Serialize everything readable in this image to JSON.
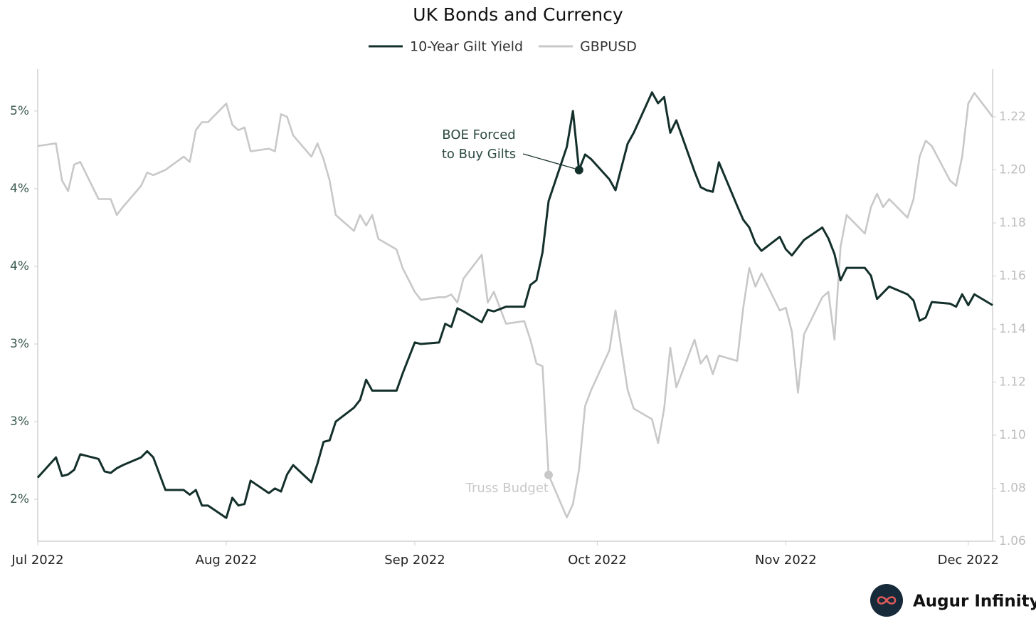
{
  "chart_data": {
    "type": "line",
    "title": "UK Bonds and Currency",
    "legend_position": "top",
    "grid": false,
    "x": [
      "2022-07-01",
      "2022-07-04",
      "2022-07-05",
      "2022-07-06",
      "2022-07-07",
      "2022-07-08",
      "2022-07-11",
      "2022-07-12",
      "2022-07-13",
      "2022-07-14",
      "2022-07-15",
      "2022-07-18",
      "2022-07-19",
      "2022-07-20",
      "2022-07-22",
      "2022-07-25",
      "2022-07-26",
      "2022-07-27",
      "2022-07-28",
      "2022-07-29",
      "2022-08-01",
      "2022-08-02",
      "2022-08-03",
      "2022-08-04",
      "2022-08-05",
      "2022-08-08",
      "2022-08-09",
      "2022-08-10",
      "2022-08-11",
      "2022-08-12",
      "2022-08-15",
      "2022-08-16",
      "2022-08-17",
      "2022-08-18",
      "2022-08-19",
      "2022-08-22",
      "2022-08-23",
      "2022-08-24",
      "2022-08-25",
      "2022-08-26",
      "2022-08-29",
      "2022-08-30",
      "2022-09-01",
      "2022-09-02",
      "2022-09-05",
      "2022-09-06",
      "2022-09-07",
      "2022-09-08",
      "2022-09-09",
      "2022-09-12",
      "2022-09-13",
      "2022-09-14",
      "2022-09-16",
      "2022-09-19",
      "2022-09-20",
      "2022-09-21",
      "2022-09-22",
      "2022-09-23",
      "2022-09-26",
      "2022-09-27",
      "2022-09-28",
      "2022-09-29",
      "2022-09-30",
      "2022-10-03",
      "2022-10-04",
      "2022-10-06",
      "2022-10-07",
      "2022-10-10",
      "2022-10-11",
      "2022-10-12",
      "2022-10-13",
      "2022-10-14",
      "2022-10-17",
      "2022-10-18",
      "2022-10-19",
      "2022-10-20",
      "2022-10-21",
      "2022-10-24",
      "2022-10-25",
      "2022-10-26",
      "2022-10-27",
      "2022-10-28",
      "2022-10-31",
      "2022-11-01",
      "2022-11-02",
      "2022-11-03",
      "2022-11-04",
      "2022-11-07",
      "2022-11-08",
      "2022-11-09",
      "2022-11-10",
      "2022-11-11",
      "2022-11-14",
      "2022-11-15",
      "2022-11-16",
      "2022-11-17",
      "2022-11-18",
      "2022-11-21",
      "2022-11-22",
      "2022-11-23",
      "2022-11-24",
      "2022-11-25",
      "2022-11-28",
      "2022-11-29",
      "2022-11-30",
      "2022-12-01",
      "2022-12-02",
      "2022-12-05"
    ],
    "series": [
      {
        "name": "10-Year Gilt Yield",
        "color": "#14302b",
        "axis": "y",
        "values": [
          2.14,
          2.27,
          2.15,
          2.16,
          2.19,
          2.29,
          2.26,
          2.18,
          2.17,
          2.2,
          2.22,
          2.27,
          2.31,
          2.27,
          2.06,
          2.06,
          2.03,
          2.06,
          1.96,
          1.96,
          1.88,
          2.01,
          1.96,
          1.97,
          2.12,
          2.04,
          2.07,
          2.05,
          2.16,
          2.22,
          2.11,
          2.23,
          2.37,
          2.38,
          2.5,
          2.59,
          2.64,
          2.77,
          2.7,
          2.7,
          2.7,
          2.81,
          3.01,
          3.0,
          3.01,
          3.13,
          3.11,
          3.23,
          3.21,
          3.14,
          3.22,
          3.21,
          3.24,
          3.24,
          3.38,
          3.41,
          3.59,
          3.92,
          4.27,
          4.5,
          4.12,
          4.22,
          4.19,
          4.06,
          3.99,
          4.29,
          4.36,
          4.62,
          4.55,
          4.59,
          4.36,
          4.44,
          4.11,
          4.01,
          3.99,
          3.98,
          4.17,
          3.89,
          3.8,
          3.75,
          3.65,
          3.6,
          3.69,
          3.61,
          3.57,
          3.62,
          3.67,
          3.75,
          3.68,
          3.58,
          3.41,
          3.49,
          3.49,
          3.44,
          3.29,
          3.33,
          3.37,
          3.32,
          3.28,
          3.15,
          3.17,
          3.27,
          3.26,
          3.24,
          3.32,
          3.25,
          3.32,
          3.25
        ]
      },
      {
        "name": "GBPUSD",
        "color": "#c8c8c8",
        "axis": "y2",
        "values": [
          1.209,
          1.21,
          1.196,
          1.192,
          1.202,
          1.203,
          1.189,
          1.189,
          1.189,
          1.183,
          1.186,
          1.194,
          1.199,
          1.198,
          1.2,
          1.205,
          1.203,
          1.215,
          1.218,
          1.218,
          1.225,
          1.217,
          1.215,
          1.216,
          1.207,
          1.208,
          1.207,
          1.221,
          1.22,
          1.213,
          1.205,
          1.21,
          1.204,
          1.196,
          1.183,
          1.177,
          1.183,
          1.179,
          1.183,
          1.174,
          1.17,
          1.163,
          1.154,
          1.151,
          1.152,
          1.152,
          1.153,
          1.15,
          1.159,
          1.168,
          1.15,
          1.154,
          1.142,
          1.143,
          1.136,
          1.127,
          1.126,
          1.085,
          1.069,
          1.074,
          1.087,
          1.111,
          1.117,
          1.132,
          1.147,
          1.117,
          1.11,
          1.106,
          1.097,
          1.11,
          1.133,
          1.118,
          1.136,
          1.127,
          1.13,
          1.123,
          1.13,
          1.128,
          1.148,
          1.163,
          1.156,
          1.161,
          1.147,
          1.148,
          1.139,
          1.116,
          1.138,
          1.152,
          1.154,
          1.136,
          1.171,
          1.183,
          1.176,
          1.186,
          1.191,
          1.186,
          1.189,
          1.182,
          1.189,
          1.205,
          1.211,
          1.209,
          1.196,
          1.194,
          1.205,
          1.225,
          1.229,
          1.22
        ]
      }
    ],
    "xlim": [
      "2022-07-01",
      "2022-12-05"
    ],
    "xticks": [
      {
        "value": "2022-07-01",
        "label": "Jul 2022"
      },
      {
        "value": "2022-08-01",
        "label": "Aug 2022"
      },
      {
        "value": "2022-09-01",
        "label": "Sep 2022"
      },
      {
        "value": "2022-10-01",
        "label": "Oct 2022"
      },
      {
        "value": "2022-11-01",
        "label": "Nov 2022"
      },
      {
        "value": "2022-12-01",
        "label": "Dec 2022"
      }
    ],
    "ylim": [
      1.73,
      4.77
    ],
    "yticks": [
      {
        "value": 2.0,
        "label": "2%"
      },
      {
        "value": 2.5,
        "label": "3%"
      },
      {
        "value": 3.0,
        "label": "3%"
      },
      {
        "value": 3.5,
        "label": "4%"
      },
      {
        "value": 4.0,
        "label": "4%"
      },
      {
        "value": 4.5,
        "label": "5%"
      }
    ],
    "y2lim": [
      1.06,
      1.238
    ],
    "y2ticks": [
      {
        "value": 1.06,
        "label": "1.06"
      },
      {
        "value": 1.08,
        "label": "1.08"
      },
      {
        "value": 1.1,
        "label": "1.10"
      },
      {
        "value": 1.12,
        "label": "1.12"
      },
      {
        "value": 1.14,
        "label": "1.14"
      },
      {
        "value": 1.16,
        "label": "1.16"
      },
      {
        "value": 1.18,
        "label": "1.18"
      },
      {
        "value": 1.2,
        "label": "1.20"
      },
      {
        "value": 1.22,
        "label": "1.22"
      }
    ],
    "annotations": [
      {
        "text": [
          "BOE Forced",
          "to Buy Gilts"
        ],
        "x": "2022-09-28",
        "y": 4.12,
        "axis": "y",
        "color": "#14302b"
      },
      {
        "text": [
          "Truss Budget"
        ],
        "x": "2022-09-23",
        "y": 1.085,
        "axis": "y2",
        "color": "#c8c8c8"
      }
    ],
    "brand": "Augur Infinity"
  }
}
